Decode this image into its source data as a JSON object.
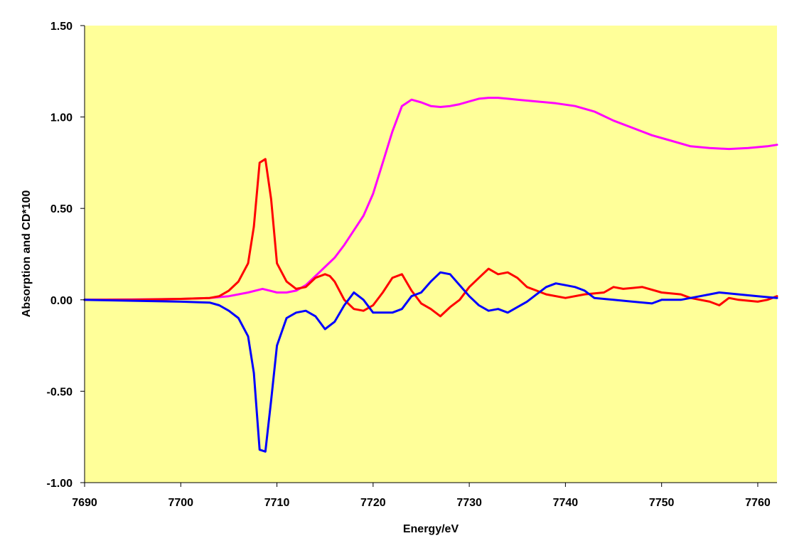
{
  "chart_data": {
    "type": "line",
    "title": "",
    "xlabel": "Energy/eV",
    "ylabel": "Absorption and CD*100",
    "xlim": [
      7690,
      7762
    ],
    "ylim": [
      -1.0,
      1.5
    ],
    "x_ticks": [
      7690,
      7700,
      7710,
      7720,
      7730,
      7740,
      7750,
      7760
    ],
    "x_tick_labels": [
      "7690",
      "7700",
      "7710",
      "7720",
      "7730",
      "7740",
      "7750",
      "7760"
    ],
    "y_ticks": [
      -1.0,
      -0.5,
      0.0,
      0.5,
      1.0,
      1.5
    ],
    "y_tick_labels": [
      "-1.00",
      "-0.50",
      "0.00",
      "0.50",
      "1.00",
      "1.50"
    ],
    "grid": false,
    "legend": "none",
    "plot_background": "#FFFF99",
    "series": [
      {
        "color": "#FF00FF",
        "points": [
          [
            7690,
            0.0
          ],
          [
            7695,
            0.002
          ],
          [
            7700,
            0.005
          ],
          [
            7703,
            0.01
          ],
          [
            7705,
            0.02
          ],
          [
            7707,
            0.04
          ],
          [
            7708.5,
            0.06
          ],
          [
            7710,
            0.04
          ],
          [
            7711,
            0.04
          ],
          [
            7712,
            0.05
          ],
          [
            7713,
            0.08
          ],
          [
            7714,
            0.13
          ],
          [
            7715,
            0.18
          ],
          [
            7716,
            0.23
          ],
          [
            7717,
            0.3
          ],
          [
            7718,
            0.38
          ],
          [
            7719,
            0.46
          ],
          [
            7720,
            0.58
          ],
          [
            7721,
            0.75
          ],
          [
            7722,
            0.92
          ],
          [
            7723,
            1.06
          ],
          [
            7724,
            1.095
          ],
          [
            7725,
            1.08
          ],
          [
            7726,
            1.06
          ],
          [
            7727,
            1.055
          ],
          [
            7728,
            1.06
          ],
          [
            7729,
            1.07
          ],
          [
            7730,
            1.085
          ],
          [
            7731,
            1.1
          ],
          [
            7732,
            1.105
          ],
          [
            7733,
            1.105
          ],
          [
            7734,
            1.1
          ],
          [
            7735,
            1.095
          ],
          [
            7737,
            1.085
          ],
          [
            7739,
            1.075
          ],
          [
            7741,
            1.06
          ],
          [
            7743,
            1.03
          ],
          [
            7745,
            0.98
          ],
          [
            7747,
            0.94
          ],
          [
            7749,
            0.9
          ],
          [
            7751,
            0.87
          ],
          [
            7753,
            0.84
          ],
          [
            7755,
            0.83
          ],
          [
            7757,
            0.825
          ],
          [
            7759,
            0.83
          ],
          [
            7761,
            0.84
          ],
          [
            7762,
            0.848
          ]
        ]
      },
      {
        "color": "#FF0000",
        "points": [
          [
            7690,
            0.0
          ],
          [
            7695,
            0.0
          ],
          [
            7700,
            0.005
          ],
          [
            7703,
            0.01
          ],
          [
            7704,
            0.02
          ],
          [
            7705,
            0.05
          ],
          [
            7706,
            0.1
          ],
          [
            7707,
            0.2
          ],
          [
            7707.6,
            0.4
          ],
          [
            7708.2,
            0.75
          ],
          [
            7708.8,
            0.77
          ],
          [
            7709.4,
            0.55
          ],
          [
            7710,
            0.2
          ],
          [
            7711,
            0.1
          ],
          [
            7712,
            0.06
          ],
          [
            7713,
            0.07
          ],
          [
            7714,
            0.12
          ],
          [
            7715,
            0.14
          ],
          [
            7715.5,
            0.13
          ],
          [
            7716,
            0.1
          ],
          [
            7717,
            0.0
          ],
          [
            7718,
            -0.05
          ],
          [
            7719,
            -0.06
          ],
          [
            7720,
            -0.03
          ],
          [
            7721,
            0.04
          ],
          [
            7722,
            0.12
          ],
          [
            7723,
            0.14
          ],
          [
            7724,
            0.05
          ],
          [
            7725,
            -0.02
          ],
          [
            7726,
            -0.05
          ],
          [
            7727,
            -0.09
          ],
          [
            7728,
            -0.04
          ],
          [
            7729,
            0.0
          ],
          [
            7730,
            0.07
          ],
          [
            7731,
            0.12
          ],
          [
            7732,
            0.17
          ],
          [
            7733,
            0.14
          ],
          [
            7734,
            0.15
          ],
          [
            7735,
            0.12
          ],
          [
            7736,
            0.07
          ],
          [
            7737,
            0.05
          ],
          [
            7738,
            0.03
          ],
          [
            7740,
            0.01
          ],
          [
            7742,
            0.03
          ],
          [
            7744,
            0.04
          ],
          [
            7745,
            0.07
          ],
          [
            7746,
            0.06
          ],
          [
            7748,
            0.07
          ],
          [
            7750,
            0.04
          ],
          [
            7752,
            0.03
          ],
          [
            7753,
            0.01
          ],
          [
            7755,
            -0.01
          ],
          [
            7756,
            -0.03
          ],
          [
            7757,
            0.01
          ],
          [
            7758,
            0.0
          ],
          [
            7760,
            -0.01
          ],
          [
            7761,
            0.0
          ],
          [
            7762,
            0.02
          ]
        ]
      },
      {
        "color": "#0000FF",
        "points": [
          [
            7690,
            0.0
          ],
          [
            7695,
            -0.005
          ],
          [
            7700,
            -0.01
          ],
          [
            7703,
            -0.015
          ],
          [
            7704,
            -0.03
          ],
          [
            7705,
            -0.06
          ],
          [
            7706,
            -0.1
          ],
          [
            7707,
            -0.2
          ],
          [
            7707.6,
            -0.4
          ],
          [
            7708.2,
            -0.82
          ],
          [
            7708.8,
            -0.83
          ],
          [
            7709.4,
            -0.55
          ],
          [
            7710,
            -0.25
          ],
          [
            7711,
            -0.1
          ],
          [
            7712,
            -0.07
          ],
          [
            7713,
            -0.06
          ],
          [
            7714,
            -0.09
          ],
          [
            7715,
            -0.16
          ],
          [
            7716,
            -0.12
          ],
          [
            7717,
            -0.03
          ],
          [
            7718,
            0.04
          ],
          [
            7719,
            0.0
          ],
          [
            7720,
            -0.07
          ],
          [
            7721,
            -0.07
          ],
          [
            7722,
            -0.07
          ],
          [
            7723,
            -0.05
          ],
          [
            7724,
            0.02
          ],
          [
            7725,
            0.04
          ],
          [
            7726,
            0.1
          ],
          [
            7727,
            0.15
          ],
          [
            7728,
            0.14
          ],
          [
            7729,
            0.08
          ],
          [
            7730,
            0.02
          ],
          [
            7731,
            -0.03
          ],
          [
            7732,
            -0.06
          ],
          [
            7733,
            -0.05
          ],
          [
            7734,
            -0.07
          ],
          [
            7735,
            -0.04
          ],
          [
            7736,
            -0.01
          ],
          [
            7737,
            0.03
          ],
          [
            7738,
            0.07
          ],
          [
            7739,
            0.09
          ],
          [
            7740,
            0.08
          ],
          [
            7741,
            0.07
          ],
          [
            7742,
            0.05
          ],
          [
            7743,
            0.01
          ],
          [
            7745,
            0.0
          ],
          [
            7747,
            -0.01
          ],
          [
            7749,
            -0.02
          ],
          [
            7750,
            0.0
          ],
          [
            7752,
            0.0
          ],
          [
            7754,
            0.02
          ],
          [
            7755,
            0.03
          ],
          [
            7756,
            0.04
          ],
          [
            7758,
            0.03
          ],
          [
            7760,
            0.02
          ],
          [
            7762,
            0.01
          ]
        ]
      }
    ]
  }
}
